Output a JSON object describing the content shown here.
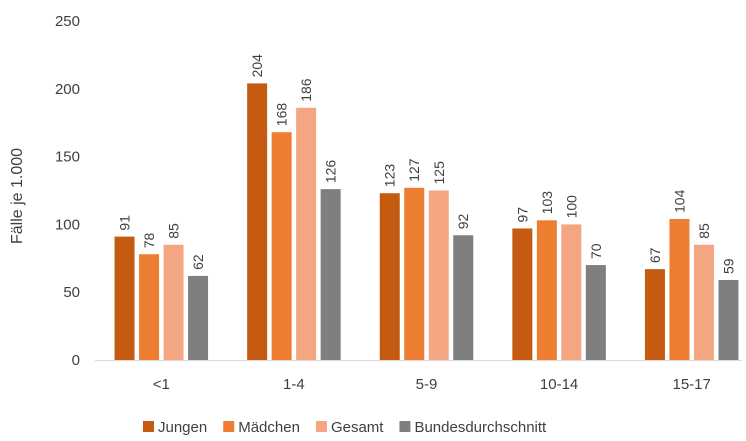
{
  "chart_data": {
    "type": "bar",
    "title": "",
    "xlabel": "",
    "ylabel": "Fälle je 1.000",
    "ylim": [
      0,
      250
    ],
    "yticks": [
      0,
      50,
      100,
      150,
      200,
      250
    ],
    "grid": false,
    "legend_position": "bottom",
    "categories": [
      "<1",
      "1-4",
      "5-9",
      "10-14",
      "15-17"
    ],
    "series": [
      {
        "name": "Jungen",
        "color": "#C55A11",
        "values": [
          91,
          204,
          123,
          97,
          67
        ]
      },
      {
        "name": "Mädchen",
        "color": "#ED7D31",
        "values": [
          78,
          168,
          127,
          103,
          104
        ]
      },
      {
        "name": "Gesamt",
        "color": "#F4A582",
        "values": [
          85,
          186,
          125,
          100,
          85
        ]
      },
      {
        "name": "Bundesdurchschnitt",
        "color": "#7F7F7F",
        "values": [
          62,
          126,
          92,
          70,
          59
        ]
      }
    ]
  }
}
